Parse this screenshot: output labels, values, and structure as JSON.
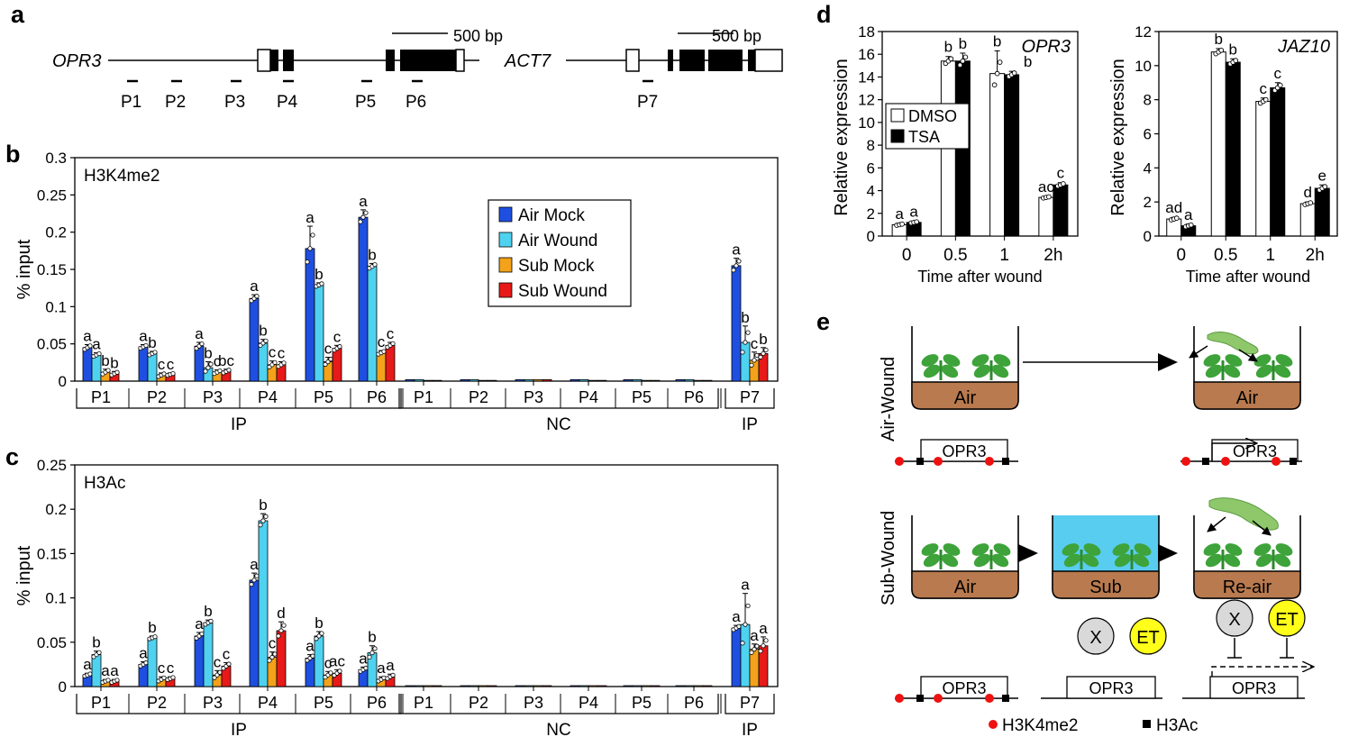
{
  "panel_letters": {
    "a": "a",
    "b": "b",
    "c": "c",
    "d": "d",
    "e": "e"
  },
  "colors": {
    "air_mock": "#1f4fe0",
    "air_wound": "#4fd2f0",
    "sub_mock": "#f3a21a",
    "sub_wound": "#e81919",
    "dmso": "#ffffff",
    "tsa": "#000000",
    "h3k4me2_dot": "#ee1111",
    "h3ac_square": "#000000",
    "soil": "#b87a4e",
    "water": "#59cdf0",
    "x_circle": "#d9d9d9",
    "et_circle": "#ffff1a",
    "plant": "#3ea33a",
    "caterpillar": "#8ec86b"
  },
  "panel_a": {
    "scale_label_1": "500 bp",
    "scale_label_2": "500 bp",
    "gene_1": "OPR3",
    "gene_2": "ACT7",
    "primers": [
      "P1",
      "P2",
      "P3",
      "P4",
      "P5",
      "P6",
      "P7"
    ]
  },
  "chart_data": [
    {
      "id": "b",
      "type": "bar",
      "title": "H3K4me2",
      "ylabel": "% input",
      "ylim": [
        0,
        0.3
      ],
      "yticks": [
        0,
        0.05,
        0.1,
        0.15,
        0.2,
        0.25,
        0.3
      ],
      "ytick_labels": [
        "0",
        "0.05",
        "0.1",
        "0.15",
        "0.2",
        "0.25",
        "0.3"
      ],
      "categories": [
        "P1",
        "P2",
        "P3",
        "P4",
        "P5",
        "P6",
        "P1",
        "P2",
        "P3",
        "P4",
        "P5",
        "P6",
        "P7"
      ],
      "groups": [
        {
          "label": "IP",
          "from": 0,
          "to": 5
        },
        {
          "label": "NC",
          "from": 6,
          "to": 11
        },
        {
          "label": "IP",
          "from": 12,
          "to": 12
        }
      ],
      "legend": {
        "position": "top-right",
        "entries": [
          "Air Mock",
          "Air Wound",
          "Sub Mock",
          "Sub Wound"
        ]
      },
      "series": [
        {
          "name": "Air Mock",
          "values": [
            0.045,
            0.046,
            0.047,
            0.111,
            0.178,
            0.22,
            0.002,
            0.002,
            0.002,
            0.002,
            0.002,
            0.002,
            0.155
          ],
          "errors": [
            0.004,
            0.003,
            0.005,
            0.005,
            0.03,
            0.01,
            0,
            0,
            0,
            0,
            0,
            0,
            0.01
          ]
        },
        {
          "name": "Air Wound",
          "values": [
            0.035,
            0.037,
            0.018,
            0.051,
            0.129,
            0.154,
            0.002,
            0.002,
            0.002,
            0.002,
            0.002,
            0.002,
            0.052
          ],
          "errors": [
            0.003,
            0.003,
            0.008,
            0.005,
            0.003,
            0.004,
            0,
            0,
            0,
            0,
            0,
            0,
            0.022
          ]
        },
        {
          "name": "Sub Mock",
          "values": [
            0.012,
            0.008,
            0.012,
            0.022,
            0.026,
            0.038,
            0.001,
            0.001,
            0.002,
            0.001,
            0.001,
            0.001,
            0.028
          ],
          "errors": [
            0.004,
            0.003,
            0.003,
            0.005,
            0.006,
            0.003,
            0,
            0,
            0,
            0,
            0,
            0,
            0.011
          ]
        },
        {
          "name": "Sub Wound",
          "values": [
            0.01,
            0.009,
            0.013,
            0.022,
            0.044,
            0.048,
            0.001,
            0.001,
            0.002,
            0.001,
            0.001,
            0.001,
            0.037
          ],
          "errors": [
            0.003,
            0.002,
            0.003,
            0.004,
            0.004,
            0.004,
            0,
            0,
            0,
            0,
            0,
            0,
            0.008
          ]
        }
      ],
      "annotations": [
        [
          "a",
          "a",
          "b",
          "b"
        ],
        [
          "a",
          "b",
          "c",
          "c"
        ],
        [
          "a",
          "b",
          "c",
          "bc"
        ],
        [
          "a",
          "b",
          "c",
          "c"
        ],
        [
          "a",
          "b",
          "c",
          "c"
        ],
        [
          "a",
          "b",
          "c",
          "c"
        ],
        [],
        [],
        [],
        [],
        [],
        [],
        [
          "a",
          "b",
          "c",
          "b"
        ]
      ]
    },
    {
      "id": "c",
      "type": "bar",
      "title": "H3Ac",
      "ylabel": "% input",
      "ylim": [
        0,
        0.25
      ],
      "yticks": [
        0,
        0.05,
        0.1,
        0.15,
        0.2,
        0.25
      ],
      "ytick_labels": [
        "0",
        "0.05",
        "0.1",
        "0.15",
        "0.2",
        "0.25"
      ],
      "categories": [
        "P1",
        "P2",
        "P3",
        "P4",
        "P5",
        "P6",
        "P1",
        "P2",
        "P3",
        "P4",
        "P5",
        "P6",
        "P7"
      ],
      "groups": [
        {
          "label": "IP",
          "from": 0,
          "to": 5
        },
        {
          "label": "NC",
          "from": 6,
          "to": 11
        },
        {
          "label": "IP",
          "from": 12,
          "to": 12
        }
      ],
      "series": [
        {
          "name": "Air Mock",
          "values": [
            0.013,
            0.025,
            0.057,
            0.12,
            0.032,
            0.019,
            0.001,
            0.001,
            0.001,
            0.001,
            0.001,
            0.001,
            0.066
          ],
          "errors": [
            0.002,
            0.003,
            0.004,
            0.008,
            0.004,
            0.003,
            0,
            0,
            0,
            0,
            0,
            0,
            0.003
          ]
        },
        {
          "name": "Air Wound",
          "values": [
            0.036,
            0.055,
            0.072,
            0.187,
            0.057,
            0.038,
            0.001,
            0.001,
            0.001,
            0.001,
            0.001,
            0.001,
            0.07
          ],
          "errors": [
            0.004,
            0.002,
            0.003,
            0.008,
            0.005,
            0.008,
            0,
            0,
            0,
            0,
            0,
            0,
            0.035
          ]
        },
        {
          "name": "Sub Mock",
          "values": [
            0.006,
            0.008,
            0.013,
            0.033,
            0.013,
            0.008,
            0.001,
            0.001,
            0.001,
            0.001,
            0.001,
            0.001,
            0.042
          ],
          "errors": [
            0.002,
            0.003,
            0.005,
            0.006,
            0.004,
            0.003,
            0,
            0,
            0,
            0,
            0,
            0,
            0.006
          ]
        },
        {
          "name": "Sub Wound",
          "values": [
            0.006,
            0.009,
            0.023,
            0.063,
            0.015,
            0.011,
            0.001,
            0.001,
            0.001,
            0.001,
            0.001,
            0.001,
            0.046
          ],
          "errors": [
            0.002,
            0.002,
            0.004,
            0.01,
            0.004,
            0.003,
            0,
            0,
            0,
            0,
            0,
            0,
            0.01
          ]
        }
      ],
      "annotations": [
        [
          "a",
          "b",
          "a",
          "a"
        ],
        [
          "a",
          "b",
          "c",
          "c"
        ],
        [
          "a",
          "b",
          "c",
          "c"
        ],
        [
          "a",
          "b",
          "c",
          "d"
        ],
        [
          "a",
          "b",
          "c",
          "ac"
        ],
        [
          "a",
          "b",
          "a",
          "a"
        ],
        [],
        [],
        [],
        [],
        [],
        [],
        [
          "a",
          "a",
          "a",
          "a"
        ]
      ]
    },
    {
      "id": "d1",
      "type": "bar",
      "gene_label": "OPR3",
      "xlabel": "Time after wound",
      "ylabel": "Relative expression",
      "ylim": [
        0,
        18
      ],
      "yticks": [
        0,
        2,
        4,
        6,
        8,
        10,
        12,
        14,
        16,
        18
      ],
      "ytick_labels": [
        "0",
        "2",
        "4",
        "6",
        "8",
        "10",
        "12",
        "14",
        "16",
        "18"
      ],
      "categories": [
        "0",
        "0.5",
        "1",
        "2h"
      ],
      "legend": {
        "position": "top-left",
        "entries": [
          "DMSO",
          "TSA"
        ]
      },
      "series": [
        {
          "name": "DMSO",
          "values": [
            1.0,
            15.4,
            14.3,
            3.4
          ],
          "errors": [
            0.1,
            0.4,
            2.0,
            0.1
          ]
        },
        {
          "name": "TSA",
          "values": [
            1.2,
            15.4,
            14.2,
            4.5
          ],
          "errors": [
            0.1,
            0.7,
            0.3,
            0.2
          ]
        }
      ],
      "annotations": [
        [
          "a",
          "a"
        ],
        [
          "b",
          "b"
        ],
        [
          "b",
          "b"
        ],
        [
          "ac",
          "c"
        ]
      ]
    },
    {
      "id": "d2",
      "type": "bar",
      "gene_label": "JAZ10",
      "xlabel": "Time after wound",
      "ylabel": "Relative expression",
      "ylim": [
        0,
        12
      ],
      "yticks": [
        0,
        2,
        4,
        6,
        8,
        10,
        12
      ],
      "ytick_labels": [
        "0",
        "2",
        "4",
        "6",
        "8",
        "10",
        "12"
      ],
      "categories": [
        "0",
        "0.5",
        "1",
        "2h"
      ],
      "series": [
        {
          "name": "DMSO",
          "values": [
            1.0,
            10.8,
            7.9,
            1.9
          ],
          "errors": [
            0.1,
            0.2,
            0.2,
            0.1
          ]
        },
        {
          "name": "TSA",
          "values": [
            0.6,
            10.2,
            8.7,
            2.8
          ],
          "errors": [
            0.1,
            0.2,
            0.3,
            0.2
          ]
        }
      ],
      "annotations": [
        [
          "ad",
          "a"
        ],
        [
          "b",
          "b"
        ],
        [
          "c",
          "c"
        ],
        [
          "d",
          "e"
        ]
      ]
    }
  ],
  "panel_e": {
    "row_labels": [
      "Air-Wound",
      "Sub-Wound"
    ],
    "pots": {
      "air": "Air",
      "sub": "Sub",
      "reair": "Re-air"
    },
    "gene": "OPR3",
    "factor_x": "X",
    "factor_et": "ET",
    "legend_h3k4me2": "H3K4me2",
    "legend_h3ac": "H3Ac"
  }
}
